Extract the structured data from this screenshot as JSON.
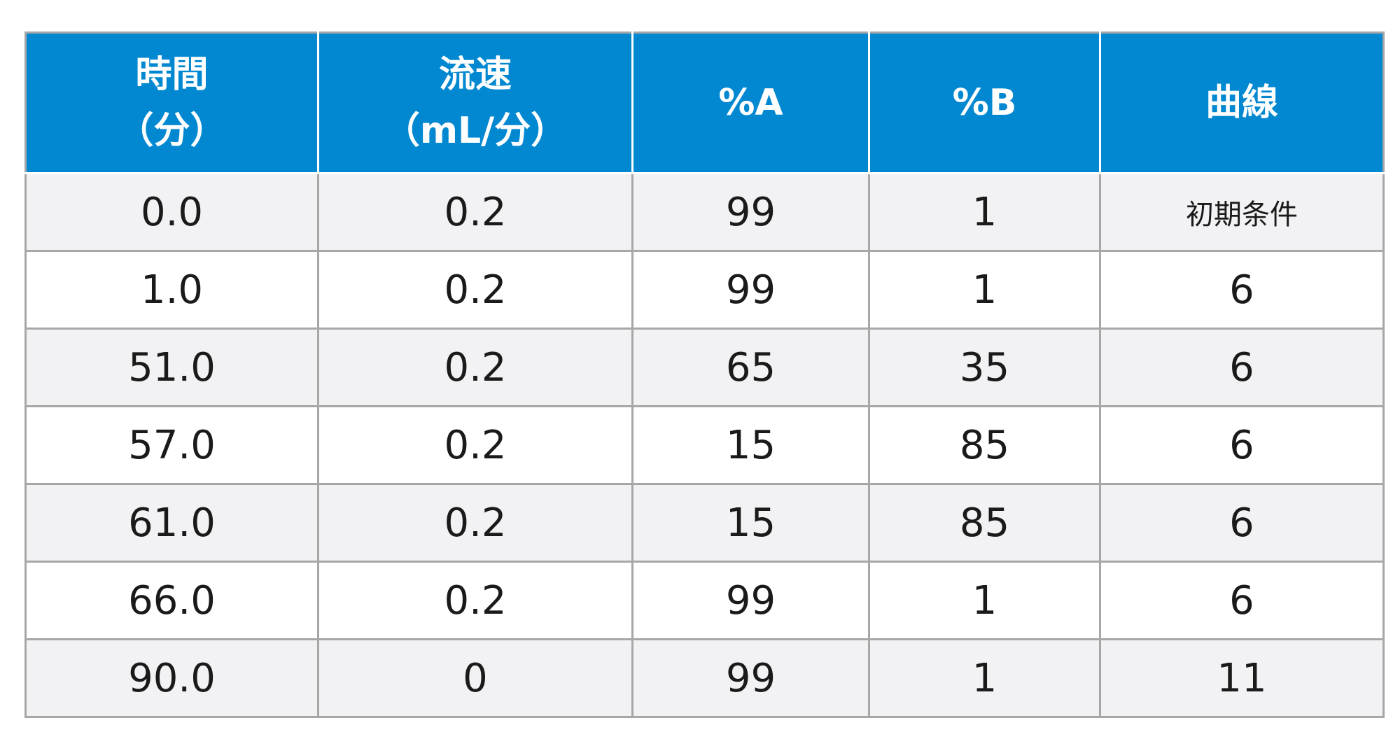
{
  "table": {
    "header": {
      "time": [
        "時間",
        "（分）"
      ],
      "flow": [
        "流速",
        "（mL/分）"
      ],
      "pctA": "%A",
      "pctB": "%B",
      "curve": "曲線"
    },
    "rows": [
      {
        "time": "0.0",
        "flow": "0.2",
        "pctA": "99",
        "pctB": "1",
        "curve": "初期条件"
      },
      {
        "time": "1.0",
        "flow": "0.2",
        "pctA": "99",
        "pctB": "1",
        "curve": "6"
      },
      {
        "time": "51.0",
        "flow": "0.2",
        "pctA": "65",
        "pctB": "35",
        "curve": "6"
      },
      {
        "time": "57.0",
        "flow": "0.2",
        "pctA": "15",
        "pctB": "85",
        "curve": "6"
      },
      {
        "time": "61.0",
        "flow": "0.2",
        "pctA": "15",
        "pctB": "85",
        "curve": "6"
      },
      {
        "time": "66.0",
        "flow": "0.2",
        "pctA": "99",
        "pctB": "1",
        "curve": "6"
      },
      {
        "time": "90.0",
        "flow": "0",
        "pctA": "99",
        "pctB": "1",
        "curve": "11"
      }
    ]
  },
  "colors": {
    "header_bg": "#0288d1",
    "header_text": "#ffffff",
    "row_odd_bg": "#f2f2f4",
    "row_even_bg": "#ffffff",
    "grid": "#a7a7a7"
  }
}
